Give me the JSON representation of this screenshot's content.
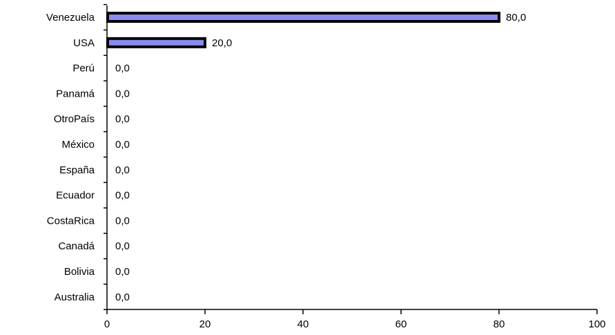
{
  "chart_data": {
    "type": "bar",
    "orientation": "horizontal",
    "categories": [
      "Venezuela",
      "USA",
      "Perú",
      "Panamá",
      "OtroPaís",
      "México",
      "España",
      "Ecuador",
      "CostaRica",
      "Canadá",
      "Bolivia",
      "Australia"
    ],
    "values": [
      80.0,
      20.0,
      0.0,
      0.0,
      0.0,
      0.0,
      0.0,
      0.0,
      0.0,
      0.0,
      0.0,
      0.0
    ],
    "value_labels": [
      "80,0",
      "20,0",
      "0,0",
      "0,0",
      "0,0",
      "0,0",
      "0,0",
      "0,0",
      "0,0",
      "0,0",
      "0,0",
      "0,0"
    ],
    "xlim": [
      0,
      100
    ],
    "xticks": [
      0,
      20,
      40,
      60,
      80,
      100
    ],
    "xtick_labels": [
      "0",
      "20",
      "40",
      "60",
      "80",
      "100"
    ],
    "grid": false,
    "bar_color": "#8a8af0",
    "bar_edge_color": "#000000",
    "title": "",
    "xlabel": "",
    "ylabel": ""
  }
}
